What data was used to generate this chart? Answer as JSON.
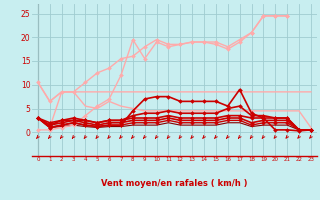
{
  "bg_color": "#c8eef0",
  "grid_color": "#a0ccd0",
  "xlabel": "Vent moyen/en rafales ( km/h )",
  "xlabel_color": "#cc0000",
  "tick_color": "#cc0000",
  "ylim": [
    -5,
    27
  ],
  "ylim_display": [
    0,
    27
  ],
  "xlim": [
    -0.5,
    23.5
  ],
  "yticks": [
    0,
    5,
    10,
    15,
    20,
    25
  ],
  "xticks": [
    0,
    1,
    2,
    3,
    4,
    5,
    6,
    7,
    8,
    9,
    10,
    11,
    12,
    13,
    14,
    15,
    16,
    17,
    18,
    19,
    20,
    21,
    22,
    23
  ],
  "series": [
    {
      "x": [
        0,
        1,
        2,
        3,
        4,
        5,
        6,
        7,
        8,
        9,
        10,
        11,
        12,
        13,
        14,
        15,
        16,
        17,
        18,
        19,
        20,
        21,
        22,
        23
      ],
      "y": [
        10.5,
        6.5,
        8.5,
        8.5,
        8.5,
        8.5,
        8.5,
        8.5,
        8.5,
        8.5,
        8.5,
        8.5,
        8.5,
        8.5,
        8.5,
        8.5,
        8.5,
        8.5,
        8.5,
        8.5,
        8.5,
        8.5,
        8.5,
        8.5
      ],
      "color": "#ffaaaa",
      "lw": 1.0,
      "marker": null
    },
    {
      "x": [
        0,
        1,
        2,
        3,
        4,
        5,
        6,
        7,
        8,
        9,
        10,
        11,
        12,
        13,
        14,
        15,
        16,
        17,
        18,
        19,
        20,
        21,
        22,
        23
      ],
      "y": [
        10.5,
        6.5,
        8.5,
        8.5,
        10.5,
        12.5,
        13.5,
        15.5,
        16.0,
        18.0,
        19.5,
        18.5,
        18.5,
        19.0,
        19.0,
        19.0,
        18.0,
        19.5,
        21.0,
        24.5,
        24.5,
        24.5,
        null,
        null
      ],
      "color": "#ffaaaa",
      "lw": 1.0,
      "marker": "D",
      "ms": 2.0
    },
    {
      "x": [
        0,
        1,
        2,
        3,
        4,
        5,
        6,
        7,
        8,
        9,
        10,
        11,
        12,
        13,
        14,
        15,
        16,
        17,
        18,
        19,
        20,
        21,
        22,
        23
      ],
      "y": [
        0.5,
        0.5,
        1.0,
        1.5,
        3.5,
        5.5,
        7.0,
        12.0,
        19.5,
        15.5,
        19.0,
        18.0,
        18.5,
        19.0,
        19.0,
        18.5,
        17.5,
        19.0,
        21.0,
        24.5,
        24.5,
        24.5,
        null,
        null
      ],
      "color": "#ffaaaa",
      "lw": 1.0,
      "marker": "D",
      "ms": 2.0
    },
    {
      "x": [
        0,
        1,
        2,
        3,
        4,
        5,
        6,
        7,
        8,
        9,
        10,
        11,
        12,
        13,
        14,
        15,
        16,
        17,
        18,
        19,
        20,
        21,
        22,
        23
      ],
      "y": [
        3.0,
        1.0,
        8.5,
        8.5,
        5.5,
        5.0,
        6.5,
        5.5,
        5.0,
        4.5,
        4.5,
        4.5,
        4.5,
        4.5,
        4.5,
        4.5,
        4.5,
        4.5,
        4.5,
        4.5,
        4.5,
        4.5,
        4.5,
        1.0
      ],
      "color": "#ffaaaa",
      "lw": 1.0,
      "marker": null
    },
    {
      "x": [
        0,
        1,
        2,
        3,
        4,
        5,
        6,
        7,
        8,
        9,
        10,
        11,
        12,
        13,
        14,
        15,
        16,
        17,
        18,
        19,
        20,
        21,
        22,
        23
      ],
      "y": [
        3.0,
        1.0,
        1.5,
        2.0,
        1.5,
        1.2,
        1.5,
        1.5,
        4.5,
        7.0,
        7.5,
        7.5,
        6.5,
        6.5,
        6.5,
        6.5,
        5.5,
        9.0,
        4.0,
        3.0,
        0.5,
        0.5,
        0.3,
        0.5
      ],
      "color": "#cc0000",
      "lw": 1.2,
      "marker": "D",
      "ms": 2.0
    },
    {
      "x": [
        0,
        1,
        2,
        3,
        4,
        5,
        6,
        7,
        8,
        9,
        10,
        11,
        12,
        13,
        14,
        15,
        16,
        17,
        18,
        19,
        20,
        21,
        22,
        23
      ],
      "y": [
        3.0,
        1.5,
        2.5,
        3.0,
        2.5,
        2.0,
        2.5,
        2.5,
        3.5,
        4.0,
        4.0,
        4.5,
        4.0,
        4.0,
        4.0,
        4.0,
        5.0,
        5.5,
        3.5,
        3.5,
        3.0,
        3.0,
        0.5,
        0.5
      ],
      "color": "#cc0000",
      "lw": 1.2,
      "marker": "D",
      "ms": 2.0
    },
    {
      "x": [
        0,
        1,
        2,
        3,
        4,
        5,
        6,
        7,
        8,
        9,
        10,
        11,
        12,
        13,
        14,
        15,
        16,
        17,
        18,
        19,
        20,
        21,
        22,
        23
      ],
      "y": [
        3.0,
        2.0,
        2.5,
        2.5,
        2.5,
        2.0,
        2.5,
        2.5,
        3.0,
        3.0,
        3.0,
        3.5,
        3.0,
        3.0,
        3.0,
        3.0,
        3.5,
        3.5,
        3.0,
        3.0,
        3.0,
        3.0,
        0.5,
        0.5
      ],
      "color": "#cc0000",
      "lw": 1.2,
      "marker": "D",
      "ms": 2.0
    },
    {
      "x": [
        0,
        1,
        2,
        3,
        4,
        5,
        6,
        7,
        8,
        9,
        10,
        11,
        12,
        13,
        14,
        15,
        16,
        17,
        18,
        19,
        20,
        21,
        22,
        23
      ],
      "y": [
        3.0,
        1.5,
        2.0,
        2.5,
        2.0,
        1.5,
        2.0,
        2.0,
        2.5,
        2.5,
        2.5,
        3.0,
        2.5,
        2.5,
        2.5,
        2.5,
        3.0,
        3.0,
        2.0,
        2.5,
        2.5,
        2.5,
        0.5,
        0.5
      ],
      "color": "#cc0000",
      "lw": 1.2,
      "marker": "D",
      "ms": 2.0
    },
    {
      "x": [
        0,
        1,
        2,
        3,
        4,
        5,
        6,
        7,
        8,
        9,
        10,
        11,
        12,
        13,
        14,
        15,
        16,
        17,
        18,
        19,
        20,
        21,
        22,
        23
      ],
      "y": [
        3.0,
        1.0,
        1.5,
        2.0,
        1.5,
        1.2,
        1.5,
        1.5,
        2.0,
        2.0,
        2.0,
        2.5,
        2.0,
        2.0,
        2.0,
        2.0,
        2.5,
        2.5,
        1.5,
        2.0,
        2.0,
        2.0,
        0.5,
        0.5
      ],
      "color": "#cc0000",
      "lw": 1.0,
      "marker": "D",
      "ms": 1.8
    },
    {
      "x": [
        0,
        1,
        2,
        3,
        4,
        5,
        6,
        7,
        8,
        9,
        10,
        11,
        12,
        13,
        14,
        15,
        16,
        17,
        18,
        19,
        20,
        21,
        22,
        23
      ],
      "y": [
        3.0,
        1.0,
        1.2,
        1.5,
        1.2,
        1.0,
        1.2,
        1.2,
        1.5,
        1.5,
        1.5,
        2.0,
        1.5,
        1.5,
        1.5,
        1.5,
        2.0,
        2.0,
        1.2,
        1.5,
        1.5,
        1.5,
        0.5,
        0.5
      ],
      "color": "#880000",
      "lw": 0.8,
      "marker": null
    }
  ],
  "arrow_color": "#cc0000",
  "vline_color": "#777777",
  "bottom_line_color": "#cc0000"
}
